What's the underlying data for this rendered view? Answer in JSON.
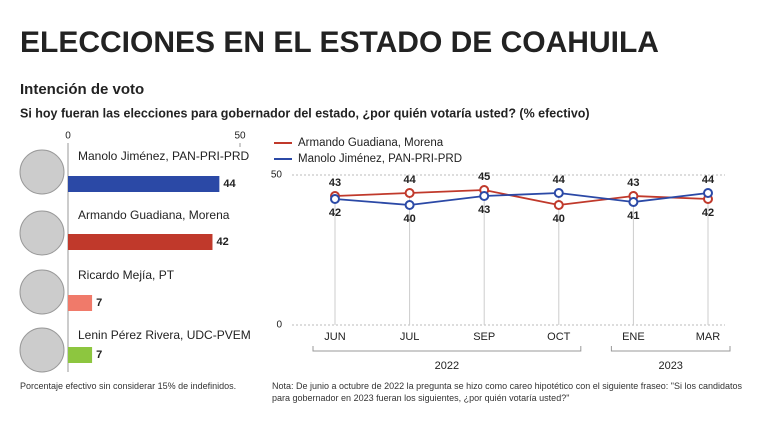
{
  "title": "ELECCIONES EN EL ESTADO DE COAHUILA",
  "subtitle": "Intención de voto",
  "question": "Si hoy fueran las elecciones para gobernador del estado, ¿por quién votaría usted? (% efectivo)",
  "chart_data": [
    {
      "type": "bar",
      "orientation": "horizontal",
      "categories": [
        "Manolo Jiménez, PAN-PRI-PRD",
        "Armando Guadiana, Morena",
        "Ricardo Mejía, PT",
        "Lenin Pérez Rivera, UDC-PVEM"
      ],
      "values": [
        44,
        42,
        7,
        7
      ],
      "colors": [
        "#2b49a6",
        "#c0392b",
        "#f07a6a",
        "#8dc63f"
      ],
      "xlim": [
        0,
        50
      ],
      "xticks": [
        0,
        50
      ],
      "footnote": "Porcentaje efectivo sin considerar 15% de indefinidos."
    },
    {
      "type": "line",
      "categories": [
        "JUN",
        "JUL",
        "SEP",
        "OCT",
        "ENE",
        "MAR"
      ],
      "groups": [
        {
          "label": "2022",
          "count": 4
        },
        {
          "label": "2023",
          "count": 2
        }
      ],
      "series": [
        {
          "name": "Armando Guadiana, Morena",
          "color": "#c0392b",
          "values": [
            43,
            44,
            45,
            40,
            43,
            42
          ]
        },
        {
          "name": "Manolo Jiménez, PAN-PRI-PRD",
          "color": "#2b49a6",
          "values": [
            42,
            40,
            43,
            44,
            41,
            44
          ]
        }
      ],
      "ylim": [
        0,
        50
      ],
      "yticks": [
        0,
        50
      ],
      "note": "Nota: De junio a octubre de 2022 la pregunta se hizo como careo hipotético con el siguiente fraseo: \"Si los candidatos para gobernador en 2023 fueran los siguientes, ¿por quién votaría usted?\""
    }
  ]
}
